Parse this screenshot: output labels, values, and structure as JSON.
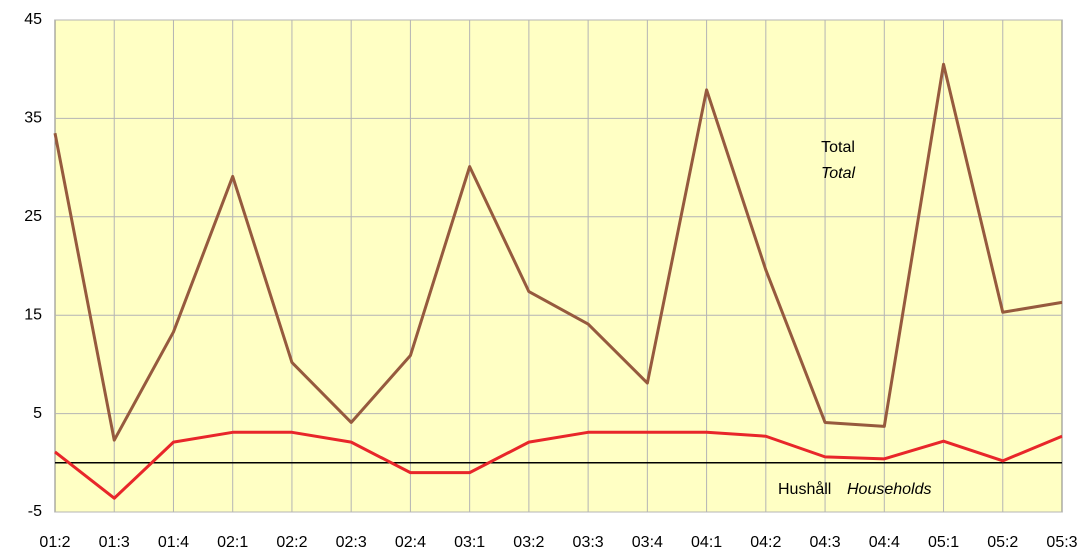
{
  "chart_data": {
    "type": "line",
    "categories": [
      "01:2",
      "01:3",
      "01:4",
      "02:1",
      "02:2",
      "02:3",
      "02:4",
      "03:1",
      "03:2",
      "03:3",
      "03:4",
      "04:1",
      "04:2",
      "04:3",
      "04:4",
      "05:1",
      "05:2",
      "05:3"
    ],
    "series": [
      {
        "name": "Total",
        "name_en": "Total",
        "color": "#965a3e",
        "values": [
          33.5,
          2.3,
          13.3,
          29.1,
          10.2,
          4.1,
          10.9,
          30.1,
          17.4,
          14.1,
          8.1,
          37.9,
          19.6,
          4.1,
          3.7,
          40.5,
          15.3,
          16.3
        ]
      },
      {
        "name": "Hushåll",
        "name_en": "Households",
        "color": "#e8262a",
        "values": [
          1.1,
          -3.6,
          2.1,
          3.1,
          3.1,
          2.1,
          -1.0,
          -1.0,
          2.1,
          3.1,
          3.1,
          3.1,
          2.7,
          0.6,
          0.4,
          2.2,
          0.2,
          2.7
        ]
      }
    ],
    "ylim": [
      -5,
      45
    ],
    "yticks": [
      -5,
      5,
      15,
      25,
      35,
      45
    ],
    "grid": true,
    "background": "#ffffc4"
  }
}
